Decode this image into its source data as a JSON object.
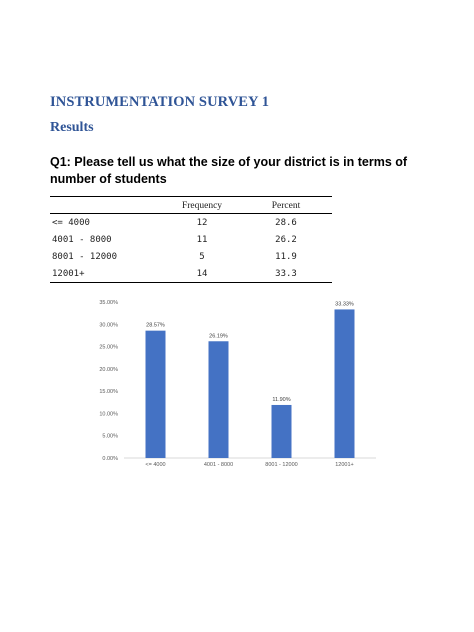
{
  "document": {
    "title": "INSTRUMENTATION SURVEY 1",
    "section": "Results",
    "question": "Q1: Please tell us what the size of your district is in terms of number of students"
  },
  "table": {
    "headers": [
      "",
      "Frequency",
      "Percent"
    ],
    "rows": [
      [
        "<= 4000",
        "12",
        "28.6"
      ],
      [
        "4001 - 8000",
        "11",
        "26.2"
      ],
      [
        "8001 - 12000",
        "5",
        "11.9"
      ],
      [
        "12001+",
        "14",
        "33.3"
      ]
    ]
  },
  "chart_data": {
    "type": "bar",
    "categories": [
      "<= 4000",
      "4001 - 8000",
      "8001 - 12000",
      "12001+"
    ],
    "values": [
      28.57,
      26.19,
      11.9,
      33.33
    ],
    "data_labels": [
      "28.57%",
      "26.19%",
      "11.90%",
      "33.33%"
    ],
    "ylim": [
      0,
      35
    ],
    "yticks": [
      0,
      5,
      10,
      15,
      20,
      25,
      30,
      35
    ],
    "ytick_labels": [
      "0.00%",
      "5.00%",
      "10.00%",
      "15.00%",
      "20.00%",
      "25.00%",
      "30.00%",
      "35.00%"
    ],
    "bar_color": "#4472c4",
    "grid": false,
    "title": "",
    "xlabel": "",
    "ylabel": ""
  }
}
